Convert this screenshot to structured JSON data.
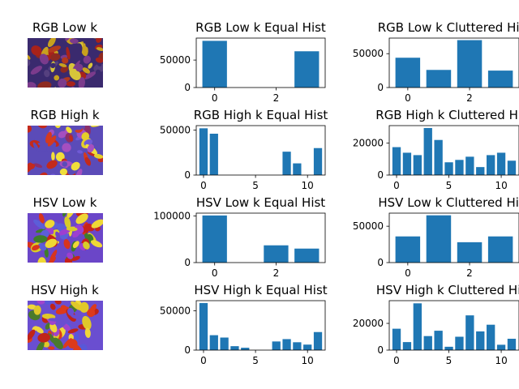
{
  "figure": {
    "bar_color": "#1f77b4",
    "background": "#ffffff"
  },
  "image_panels": [
    {
      "title": "RGB Low k",
      "palette": [
        "#3a2a6e",
        "#b4391c",
        "#7b3b8c",
        "#c8a11e",
        "#a8221a",
        "#55407f",
        "#d7c53a",
        "#8e2a20"
      ]
    },
    {
      "title": "RGB High k",
      "palette": [
        "#5b4bb8",
        "#d43a1f",
        "#a54fc0",
        "#e5cf2a",
        "#c32a1c",
        "#6f5ad6",
        "#f0de3a",
        "#8c2f6a"
      ]
    },
    {
      "title": "HSV Low k",
      "palette": [
        "#6b46c8",
        "#d8341c",
        "#9d3fd0",
        "#d8cc28",
        "#c6221a",
        "#5c5ed8",
        "#efd735",
        "#3e7d2a"
      ]
    },
    {
      "title": "HSV High k",
      "palette": [
        "#6a4ed0",
        "#dc3a1c",
        "#a044cc",
        "#e0c82a",
        "#c02418",
        "#5858d8",
        "#efd73a",
        "#4a7a2c"
      ]
    }
  ],
  "chart_data": [
    {
      "type": "bar",
      "title": "RGB Low k Equal Hist",
      "x": [
        0,
        1,
        2,
        3
      ],
      "values": [
        85000,
        0,
        0,
        66000
      ],
      "xlim": [
        -0.6,
        3.6
      ],
      "ylim": [
        0,
        90000
      ],
      "xticks": [
        0,
        2
      ],
      "yticks": [
        0,
        50000
      ]
    },
    {
      "type": "bar",
      "title": "RGB Low k Cluttered Hist",
      "x": [
        0,
        1,
        2,
        3
      ],
      "values": [
        44000,
        26000,
        70000,
        25000
      ],
      "xlim": [
        -0.6,
        3.6
      ],
      "ylim": [
        0,
        73000
      ],
      "xticks": [
        0,
        2
      ],
      "yticks": [
        0,
        50000
      ]
    },
    {
      "type": "bar",
      "title": "RGB High k Equal Hist",
      "x": [
        0,
        1,
        2,
        3,
        4,
        5,
        6,
        7,
        8,
        9,
        10,
        11
      ],
      "values": [
        52000,
        46000,
        0,
        0,
        0,
        0,
        0,
        0,
        26000,
        13000,
        0,
        30000
      ],
      "xlim": [
        -0.7,
        11.7
      ],
      "ylim": [
        0,
        55000
      ],
      "xticks": [
        0,
        5,
        10
      ],
      "yticks": [
        0,
        50000
      ]
    },
    {
      "type": "bar",
      "title": "RGB High k Cluttered Hist",
      "x": [
        0,
        1,
        2,
        3,
        4,
        5,
        6,
        7,
        8,
        9,
        10,
        11
      ],
      "values": [
        17500,
        14000,
        12500,
        29500,
        22000,
        8000,
        9500,
        11500,
        5000,
        12500,
        14000,
        9000
      ],
      "xlim": [
        -0.7,
        11.7
      ],
      "ylim": [
        0,
        31000
      ],
      "xticks": [
        0,
        5,
        10
      ],
      "yticks": [
        0,
        20000
      ]
    },
    {
      "type": "bar",
      "title": "HSV Low k Equal Hist",
      "x": [
        0,
        1,
        2,
        3
      ],
      "values": [
        101000,
        0,
        37000,
        30000
      ],
      "xlim": [
        -0.6,
        3.6
      ],
      "ylim": [
        0,
        106000
      ],
      "xticks": [
        0,
        2
      ],
      "yticks": [
        0,
        100000
      ]
    },
    {
      "type": "bar",
      "title": "HSV Low k Cluttered Hist",
      "x": [
        0,
        1,
        2,
        3
      ],
      "values": [
        36000,
        65000,
        28000,
        36000
      ],
      "xlim": [
        -0.6,
        3.6
      ],
      "ylim": [
        0,
        68000
      ],
      "xticks": [
        0,
        2
      ],
      "yticks": [
        0,
        50000
      ]
    },
    {
      "type": "bar",
      "title": "HSV High k Equal Hist",
      "x": [
        0,
        1,
        2,
        3,
        4,
        5,
        6,
        7,
        8,
        9,
        10,
        11
      ],
      "values": [
        60000,
        19000,
        16000,
        5000,
        3000,
        0,
        0,
        11000,
        14000,
        10000,
        7000,
        23000
      ],
      "xlim": [
        -0.7,
        11.7
      ],
      "ylim": [
        0,
        63000
      ],
      "xticks": [
        0,
        5,
        10
      ],
      "yticks": [
        0,
        50000
      ]
    },
    {
      "type": "bar",
      "title": "HSV High k Cluttered Hist",
      "x": [
        0,
        1,
        2,
        3,
        4,
        5,
        6,
        7,
        8,
        9,
        10,
        11
      ],
      "values": [
        16000,
        6000,
        35000,
        10500,
        14500,
        2500,
        10000,
        26000,
        14000,
        19000,
        4000,
        8500
      ],
      "xlim": [
        -0.7,
        11.7
      ],
      "ylim": [
        0,
        37000
      ],
      "xticks": [
        0,
        5,
        10
      ],
      "yticks": [
        0,
        20000
      ]
    }
  ]
}
